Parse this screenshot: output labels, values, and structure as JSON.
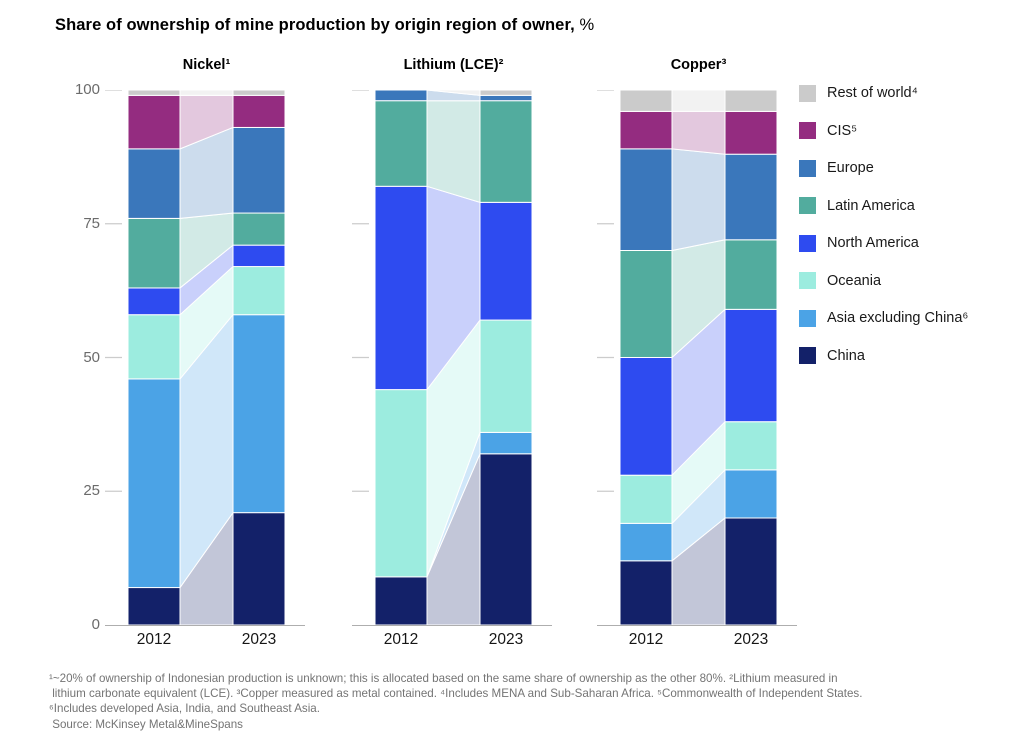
{
  "title": {
    "main": "Share of ownership of mine production by origin region of owner,",
    "unit": " %"
  },
  "legend": {
    "items": [
      {
        "label": "Rest of world⁴",
        "color": "#cbcbcb"
      },
      {
        "label": "CIS⁵",
        "color": "#942c80"
      },
      {
        "label": "Europe",
        "color": "#3a77bb"
      },
      {
        "label": "Latin America",
        "color": "#52ac9e"
      },
      {
        "label": "North America",
        "color": "#2e4bf0"
      },
      {
        "label": "Oceania",
        "color": "#9cecdf"
      },
      {
        "label": "Asia excluding China⁶",
        "color": "#4ba3e6"
      },
      {
        "label": "China",
        "color": "#132169"
      }
    ]
  },
  "chart_data": {
    "type": "bar",
    "variant": "stacked-columns-with-flow-bands",
    "categories": [
      "2012",
      "2023"
    ],
    "unit": "%",
    "ylim": [
      0,
      100
    ],
    "y_ticks": [
      100,
      75,
      50,
      25,
      0
    ],
    "grid": false,
    "legend_position": "right",
    "stack_order_bottom_to_top": [
      "China",
      "Asia excluding China",
      "Oceania",
      "North America",
      "Latin America",
      "Europe",
      "CIS",
      "Rest of world"
    ],
    "region_colors": {
      "China": "#132169",
      "Asia excluding China": "#4ba3e6",
      "Oceania": "#9cecdf",
      "North America": "#2e4bf0",
      "Latin America": "#52ac9e",
      "Europe": "#3a77bb",
      "CIS": "#942c80",
      "Rest of world": "#cbcbcb"
    },
    "charts": [
      {
        "title": "Nickel¹",
        "series": [
          {
            "name": "China",
            "values": [
              7,
              21
            ]
          },
          {
            "name": "Asia excluding China",
            "values": [
              39,
              37
            ]
          },
          {
            "name": "Oceania",
            "values": [
              12,
              9
            ]
          },
          {
            "name": "North America",
            "values": [
              5,
              4
            ]
          },
          {
            "name": "Latin America",
            "values": [
              13,
              6
            ]
          },
          {
            "name": "Europe",
            "values": [
              13,
              16
            ]
          },
          {
            "name": "CIS",
            "values": [
              10,
              6
            ]
          },
          {
            "name": "Rest of world",
            "values": [
              1,
              1
            ]
          }
        ]
      },
      {
        "title": "Lithium (LCE)²",
        "series": [
          {
            "name": "China",
            "values": [
              9,
              32
            ]
          },
          {
            "name": "Asia excluding China",
            "values": [
              0,
              4
            ]
          },
          {
            "name": "Oceania",
            "values": [
              35,
              21
            ]
          },
          {
            "name": "North America",
            "values": [
              38,
              22
            ]
          },
          {
            "name": "Latin America",
            "values": [
              16,
              19
            ]
          },
          {
            "name": "Europe",
            "values": [
              2,
              1
            ]
          },
          {
            "name": "CIS",
            "values": [
              0,
              0
            ]
          },
          {
            "name": "Rest of world",
            "values": [
              0,
              1
            ]
          }
        ]
      },
      {
        "title": "Copper³",
        "series": [
          {
            "name": "China",
            "values": [
              12,
              20
            ]
          },
          {
            "name": "Asia excluding China",
            "values": [
              7,
              9
            ]
          },
          {
            "name": "Oceania",
            "values": [
              9,
              9
            ]
          },
          {
            "name": "North America",
            "values": [
              22,
              21
            ]
          },
          {
            "name": "Latin America",
            "values": [
              20,
              13
            ]
          },
          {
            "name": "Europe",
            "values": [
              19,
              16
            ]
          },
          {
            "name": "CIS",
            "values": [
              7,
              8
            ]
          },
          {
            "name": "Rest of world",
            "values": [
              4,
              4
            ]
          }
        ]
      }
    ]
  },
  "footnotes": {
    "lines": [
      "¹~20% of ownership of Indonesian production is unknown; this is allocated based on the same share of ownership as the other 80%. ²Lithium measured in",
      " lithium carbonate equivalent (LCE). ³Copper measured as metal contained. ⁴Includes MENA and Sub-Saharan Africa. ⁵Commonwealth of Independent States.",
      "⁶Includes developed Asia, India, and Southeast Asia.",
      " Source: McKinsey Metal&MineSpans"
    ]
  }
}
